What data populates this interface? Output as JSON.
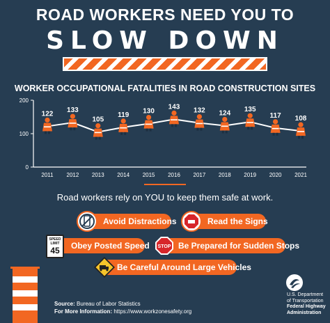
{
  "headline": {
    "line1": "ROAD WORKERS NEED YOU TO",
    "line2": "SLOW DOWN"
  },
  "chart_data": {
    "type": "line",
    "title": "WORKER OCCUPATIONAL FATALITIES IN ROAD CONSTRUCTION SITES",
    "categories": [
      "2011",
      "2012",
      "2013",
      "2014",
      "2015",
      "2016",
      "2017",
      "2018",
      "2019",
      "2020",
      "2021"
    ],
    "values": [
      122,
      133,
      105,
      119,
      130,
      143,
      132,
      124,
      135,
      117,
      108
    ],
    "yticks": [
      0,
      100,
      200
    ],
    "ylim": [
      0,
      200
    ],
    "grid": false,
    "marker": "worker-icon",
    "colors": {
      "line": "#ffffff",
      "marker": "#f26722",
      "axis": "#ffffff"
    }
  },
  "message": "Road workers rely on YOU to keep them safe at work.",
  "tips": [
    {
      "label": "Avoid Distractions",
      "icon": "no-phone-icon"
    },
    {
      "label": "Read the Signs",
      "icon": "stop-hand-sign-icon"
    },
    {
      "label": "Obey Posted Speed",
      "icon": "speed-limit-sign-icon"
    },
    {
      "label": "Be Prepared for Sudden Stops",
      "icon": "stop-sign-icon"
    },
    {
      "label": "Be Careful Around Large Vehicles",
      "icon": "truck-warning-sign-icon"
    }
  ],
  "speed_sign": {
    "top": "SPEED",
    "mid": "LIMIT",
    "num": "45"
  },
  "stop_sign_text": "STOP",
  "source": {
    "label": "Source:",
    "value": "Bureau of Labor Statistics",
    "more_label": "For More Information:",
    "more_value": "https://www.workzonesafety.org"
  },
  "agency": {
    "line1": "U.S. Department",
    "line2": "of Transportation",
    "line3": "Federal Highway",
    "line4": "Administration"
  },
  "accent_color": "#f26722",
  "background_color": "#263d52"
}
